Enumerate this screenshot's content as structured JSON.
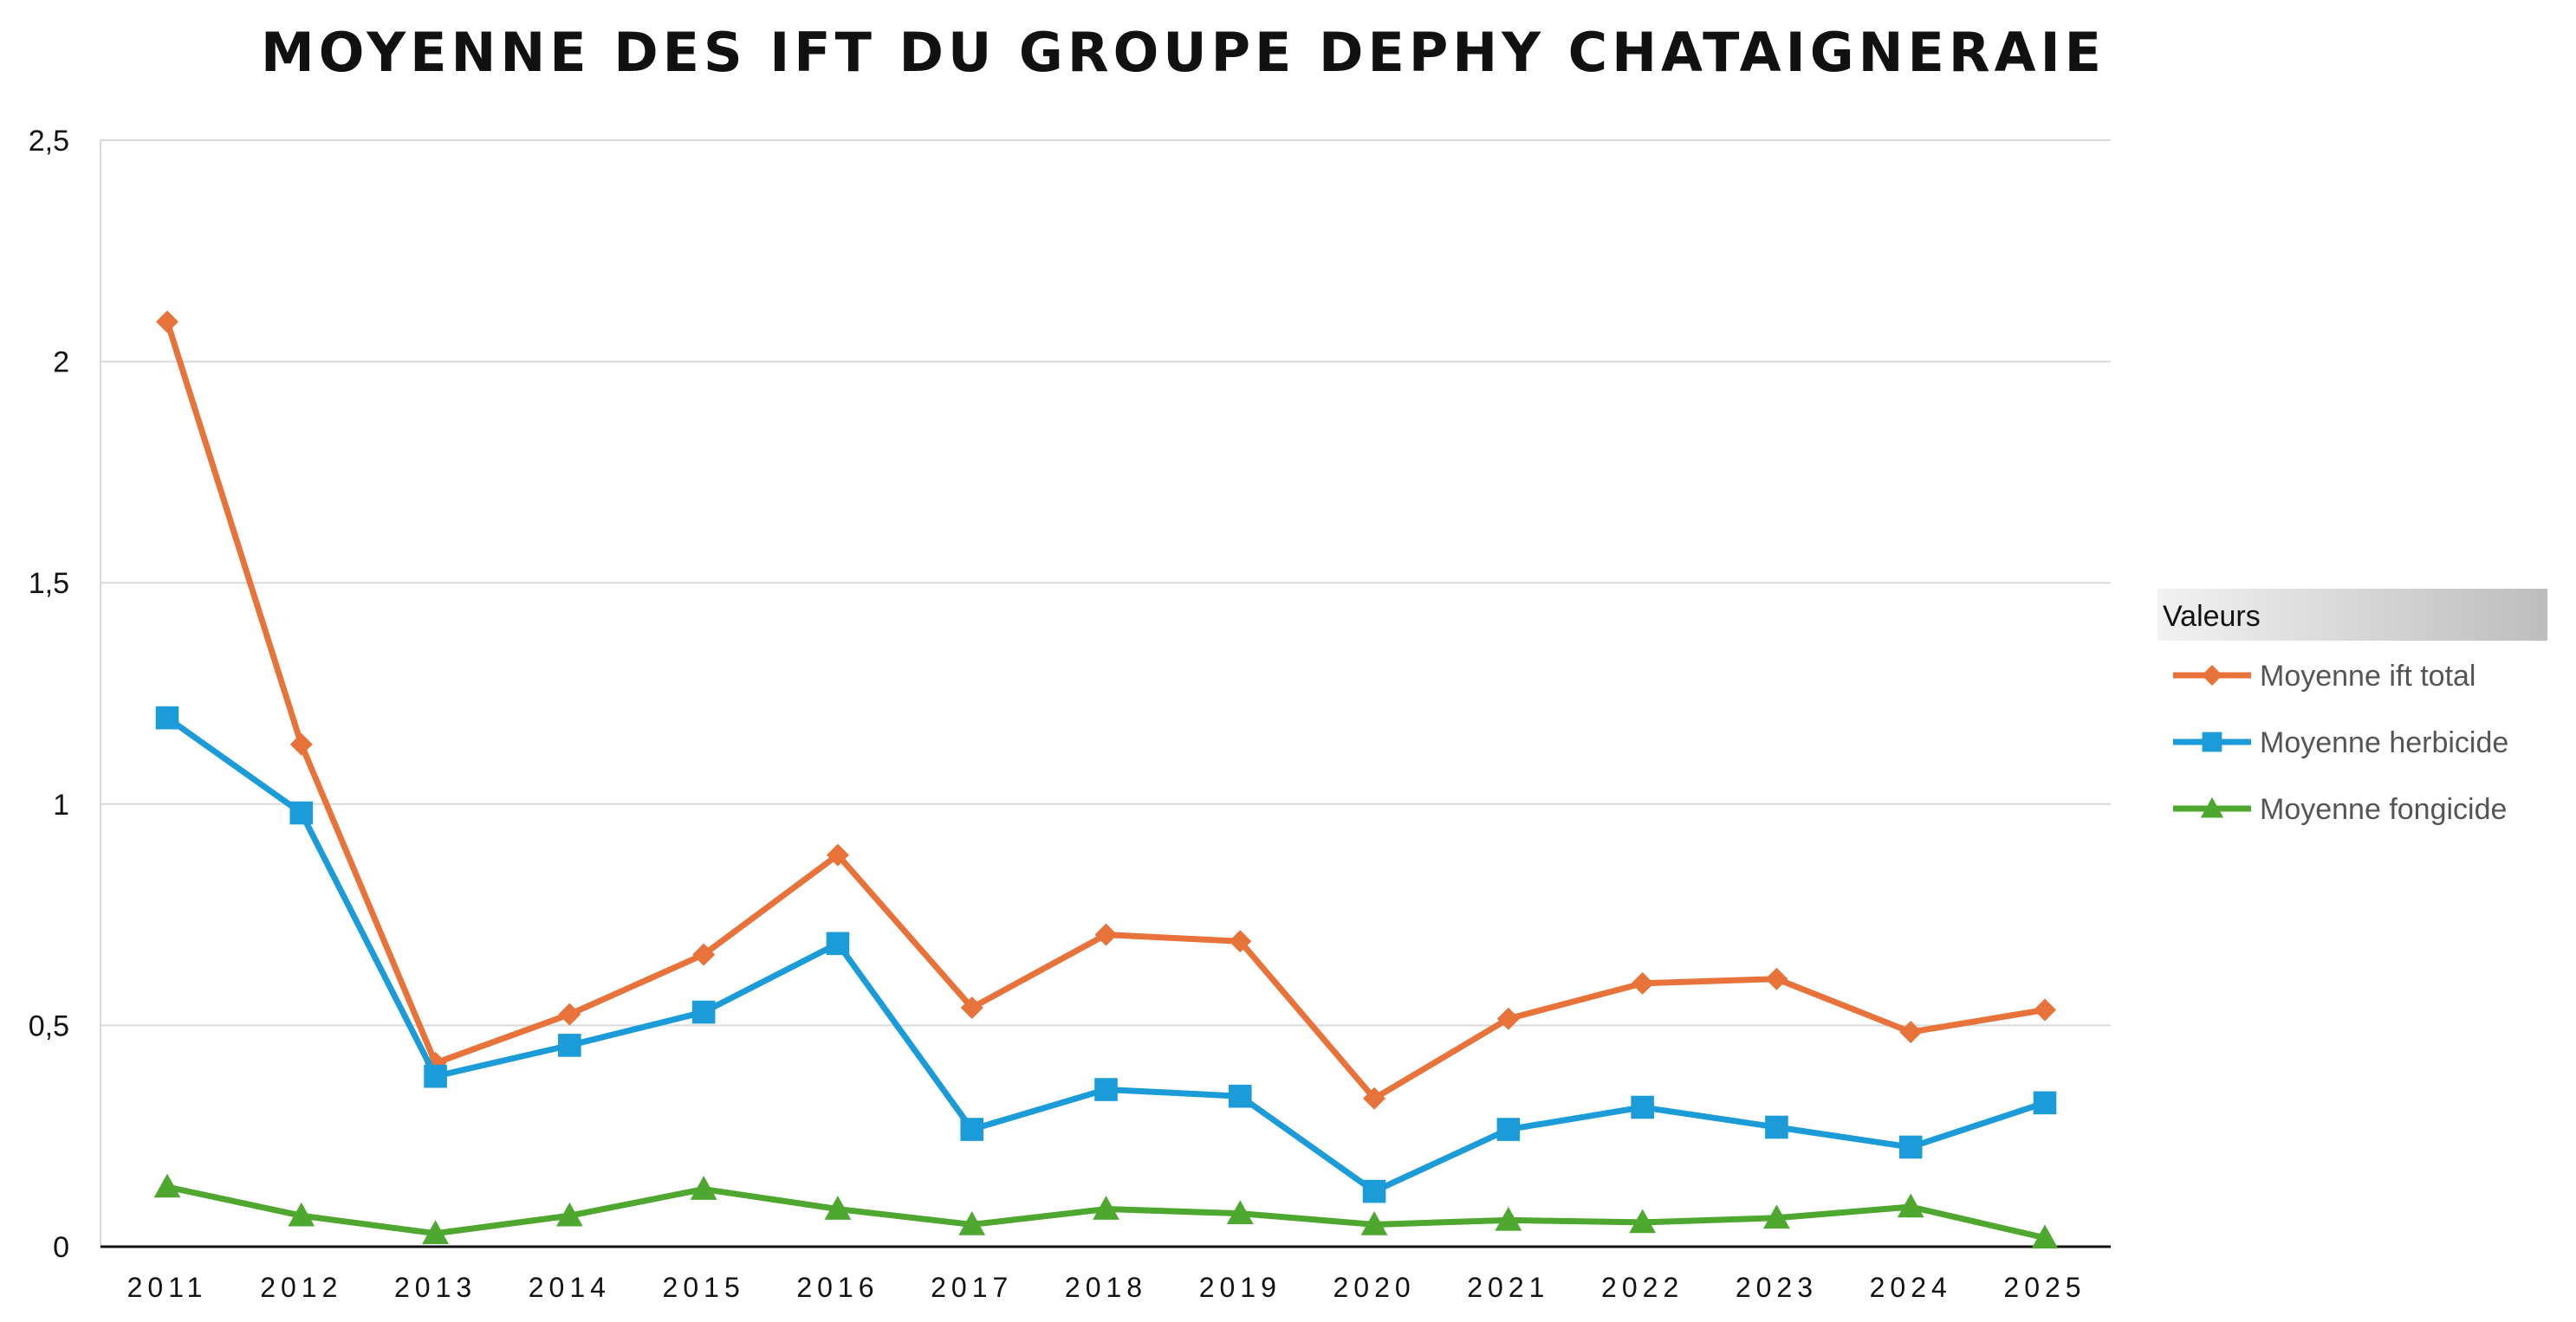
{
  "chart_data": {
    "type": "line",
    "title": "MOYENNE DES IFT DU GROUPE DEPHY CHATAIGNERAIE",
    "categories": [
      "2011",
      "2012",
      "2013",
      "2014",
      "2015",
      "2016",
      "2017",
      "2018",
      "2019",
      "2020",
      "2021",
      "2022",
      "2023",
      "2024",
      "2025"
    ],
    "ylim": [
      0,
      2.5
    ],
    "yticks": [
      "0",
      "0,5",
      "1",
      "1,5",
      "2",
      "2,5"
    ],
    "grid": true,
    "legend_placement": "right",
    "legend_title": "Valeurs",
    "series": [
      {
        "name": "Moyenne ift total",
        "color": "#E8733A",
        "marker": "diamond",
        "values": [
          2.09,
          1.135,
          0.415,
          0.525,
          0.66,
          0.885,
          0.54,
          0.705,
          0.69,
          0.335,
          0.515,
          0.595,
          0.605,
          0.485,
          0.535
        ]
      },
      {
        "name": "Moyenne herbicide",
        "color": "#1B9BD7",
        "marker": "square",
        "values": [
          1.195,
          0.98,
          0.385,
          0.455,
          0.53,
          0.685,
          0.265,
          0.355,
          0.34,
          0.125,
          0.265,
          0.315,
          0.27,
          0.225,
          0.325
        ]
      },
      {
        "name": "Moyenne fongicide",
        "color": "#4EA72E",
        "marker": "triangle",
        "values": [
          0.135,
          0.07,
          0.03,
          0.07,
          0.13,
          0.085,
          0.05,
          0.085,
          0.075,
          0.05,
          0.06,
          0.055,
          0.065,
          0.09,
          0.02
        ]
      }
    ]
  }
}
